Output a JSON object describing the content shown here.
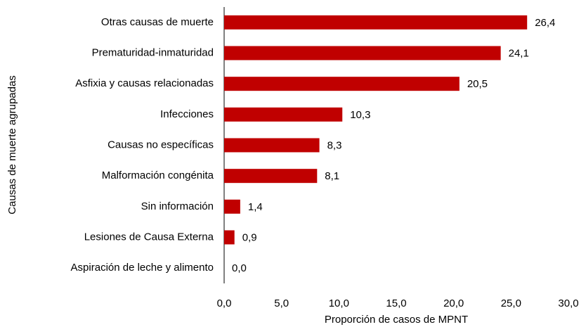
{
  "chart_data": {
    "type": "bar",
    "orientation": "horizontal",
    "x_label": "Proporción de casos de MPNT",
    "y_label": "Causas de muerte agrupadas",
    "categories": [
      "Otras causas de muerte",
      "Prematuridad-inmaturidad",
      "Asfixia y causas relacionadas",
      "Infecciones",
      "Causas no específicas",
      "Malformación congénita",
      "Sin información",
      "Lesiones de Causa Externa",
      "Aspiración de leche y alimento"
    ],
    "values": [
      26.4,
      24.1,
      20.5,
      10.3,
      8.3,
      8.1,
      1.4,
      0.9,
      0.0
    ],
    "value_labels": [
      "26,4",
      "24,1",
      "20,5",
      "10,3",
      "8,3",
      "8,1",
      "1,4",
      "0,9",
      "0,0"
    ],
    "color": "#c00000",
    "xlim": [
      0,
      30
    ],
    "xticks": [
      {
        "value": 0,
        "label": "0,0"
      },
      {
        "value": 5,
        "label": "5,0"
      },
      {
        "value": 10,
        "label": "10,0"
      },
      {
        "value": 15,
        "label": "15,0"
      },
      {
        "value": 20,
        "label": "20,0"
      },
      {
        "value": 25,
        "label": "25,0"
      },
      {
        "value": 30,
        "label": "30,0"
      }
    ],
    "grid": false
  }
}
